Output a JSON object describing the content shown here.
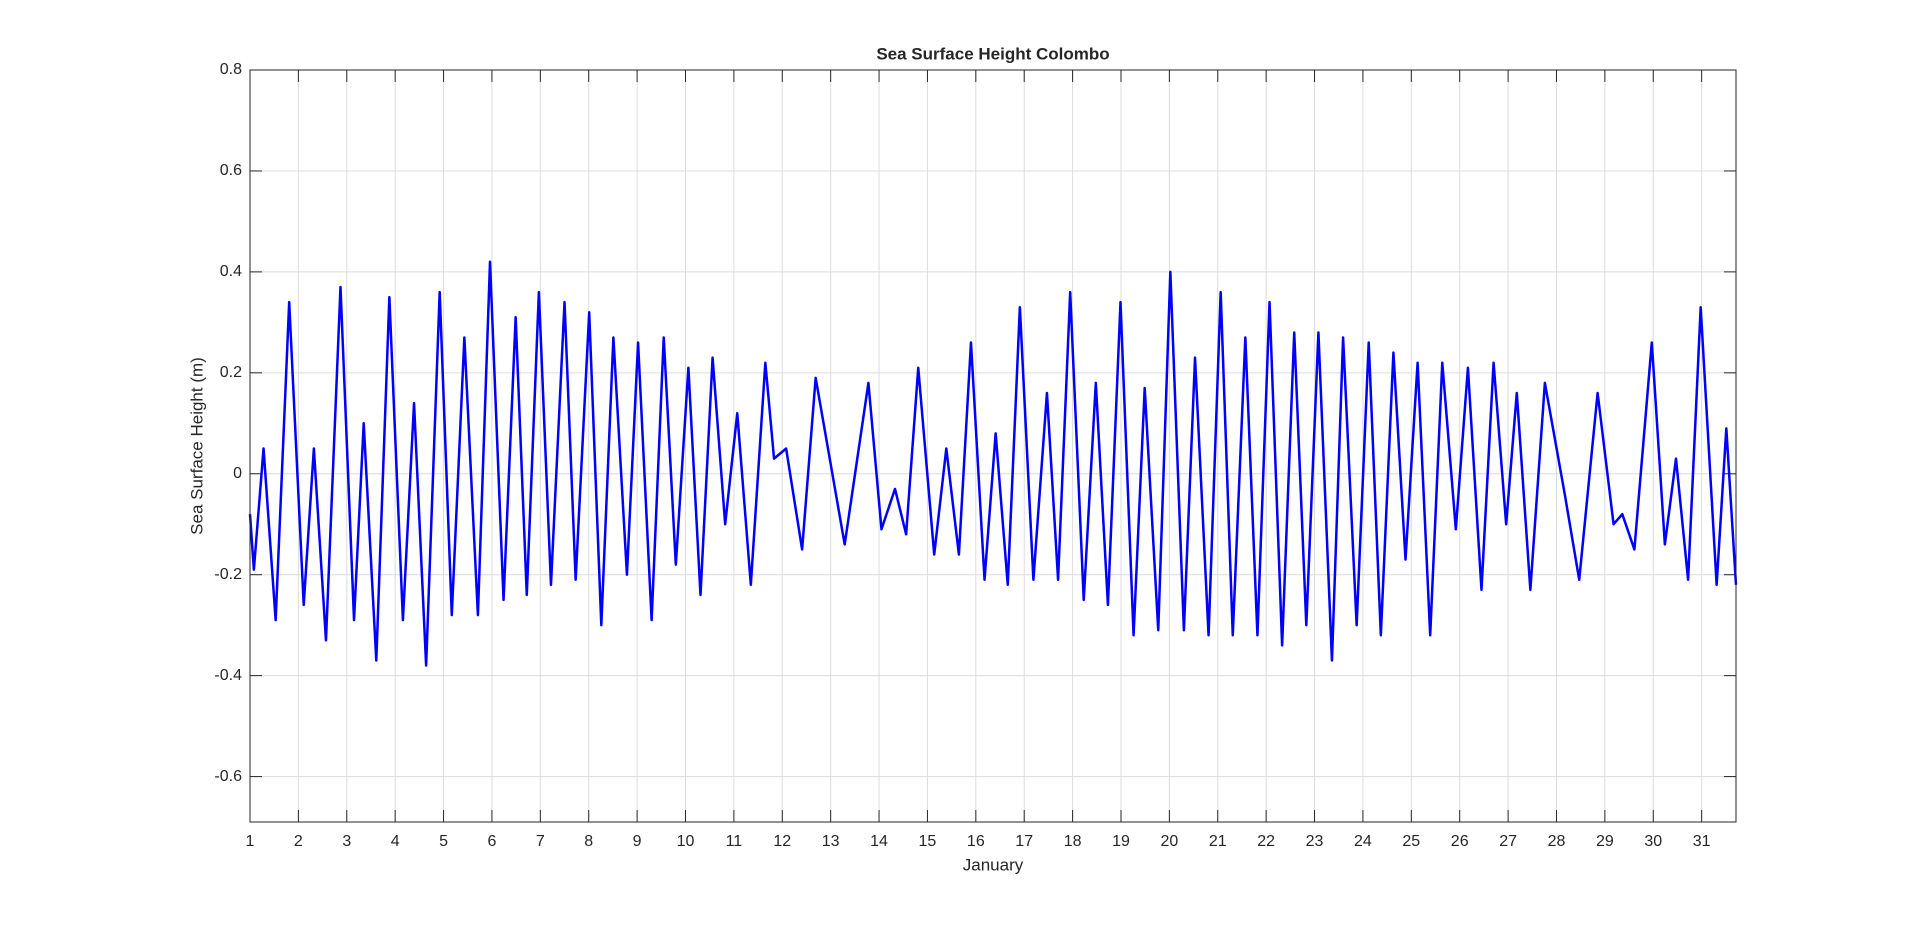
{
  "chart_data": {
    "type": "line",
    "title": "Sea Surface Height Colombo",
    "x_label": "January",
    "y_label": "Sea Surface Height (m)",
    "color": "#0000ff",
    "grid": true,
    "x": [
      1.0,
      1.08,
      1.28,
      1.53,
      1.81,
      2.11,
      2.32,
      2.57,
      2.87,
      3.15,
      3.35,
      3.61,
      3.88,
      4.16,
      4.39,
      4.64,
      4.92,
      5.17,
      5.43,
      5.71,
      5.96,
      6.24,
      6.49,
      6.72,
      6.97,
      7.22,
      7.5,
      7.73,
      8.01,
      8.26,
      8.51,
      8.79,
      9.02,
      9.3,
      9.55,
      9.8,
      10.06,
      10.31,
      10.56,
      10.82,
      11.07,
      11.35,
      11.65,
      11.83,
      12.08,
      12.41,
      12.69,
      13.29,
      13.78,
      14.05,
      14.33,
      14.56,
      14.81,
      15.14,
      15.39,
      15.65,
      15.9,
      16.18,
      16.41,
      16.66,
      16.91,
      17.19,
      17.47,
      17.7,
      17.95,
      18.23,
      18.48,
      18.73,
      18.99,
      19.26,
      19.49,
      19.77,
      20.02,
      20.3,
      20.53,
      20.81,
      21.06,
      21.31,
      21.57,
      21.82,
      22.07,
      22.33,
      22.58,
      22.83,
      23.08,
      23.36,
      23.59,
      23.87,
      24.12,
      24.37,
      24.63,
      24.88,
      25.13,
      25.39,
      25.64,
      25.92,
      26.17,
      26.45,
      26.7,
      26.96,
      27.18,
      27.46,
      27.76,
      28.17,
      28.47,
      28.85,
      29.18,
      29.36,
      29.61,
      29.97,
      30.24,
      30.47,
      30.72,
      30.98,
      31.31,
      31.51,
      31.71
    ],
    "values": [
      -0.08,
      -0.19,
      0.05,
      -0.29,
      0.34,
      -0.26,
      0.05,
      -0.33,
      0.37,
      -0.29,
      0.1,
      -0.37,
      0.35,
      -0.29,
      0.14,
      -0.38,
      0.36,
      -0.28,
      0.27,
      -0.28,
      0.42,
      -0.25,
      0.31,
      -0.24,
      0.36,
      -0.22,
      0.34,
      -0.21,
      0.32,
      -0.3,
      0.27,
      -0.2,
      0.26,
      -0.29,
      0.27,
      -0.18,
      0.21,
      -0.24,
      0.23,
      -0.1,
      0.12,
      -0.22,
      0.22,
      0.03,
      0.05,
      -0.15,
      0.19,
      -0.14,
      0.18,
      -0.11,
      -0.03,
      -0.12,
      0.21,
      -0.16,
      0.05,
      -0.16,
      0.26,
      -0.21,
      0.08,
      -0.22,
      0.33,
      -0.21,
      0.16,
      -0.21,
      0.36,
      -0.25,
      0.18,
      -0.26,
      0.34,
      -0.32,
      0.17,
      -0.31,
      0.4,
      -0.31,
      0.23,
      -0.32,
      0.36,
      -0.32,
      0.27,
      -0.32,
      0.34,
      -0.34,
      0.28,
      -0.3,
      0.28,
      -0.37,
      0.27,
      -0.3,
      0.26,
      -0.32,
      0.24,
      -0.17,
      0.22,
      -0.32,
      0.22,
      -0.11,
      0.21,
      -0.23,
      0.22,
      -0.1,
      0.16,
      -0.23,
      0.18,
      -0.04,
      -0.21,
      0.16,
      -0.1,
      -0.08,
      -0.15,
      0.26,
      -0.14,
      0.03,
      -0.21,
      0.33,
      -0.22,
      0.09,
      -0.22
    ],
    "xlim": [
      1,
      31.71
    ],
    "xticks": [
      1,
      2,
      3,
      4,
      5,
      6,
      7,
      8,
      9,
      10,
      11,
      12,
      13,
      14,
      15,
      16,
      17,
      18,
      19,
      20,
      21,
      22,
      23,
      24,
      25,
      26,
      27,
      28,
      29,
      30,
      31
    ],
    "ylim": [
      -0.69,
      0.8
    ],
    "yticks": [
      -0.6,
      -0.4,
      -0.2,
      0,
      0.2,
      0.4,
      0.6,
      0.8
    ]
  }
}
